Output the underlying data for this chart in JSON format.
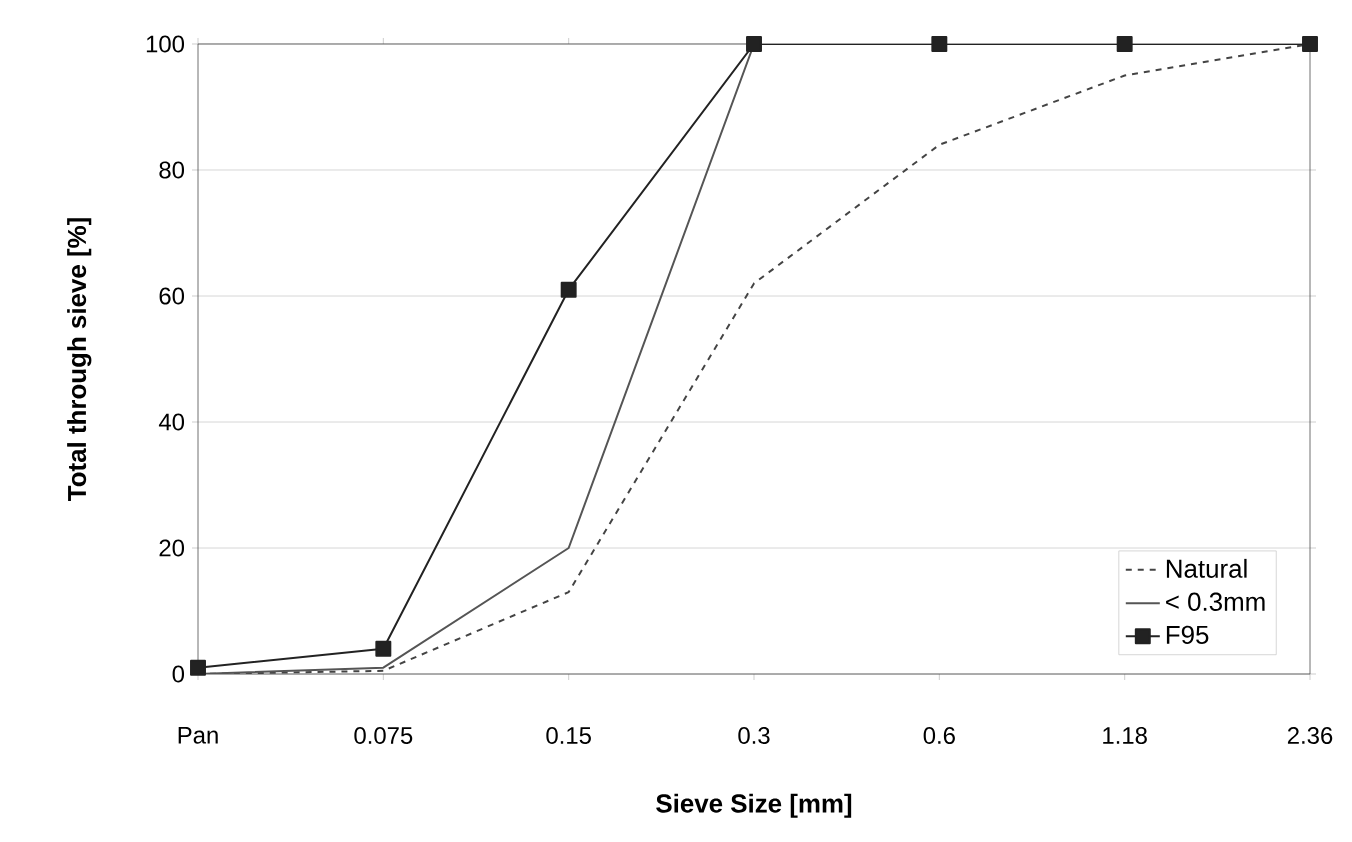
{
  "chart_data": {
    "type": "line",
    "xlabel": "Sieve Size [mm]",
    "ylabel": "Total through sieve [%]",
    "categories": [
      "Pan",
      "0.075",
      "0.15",
      "0.3",
      "0.6",
      "1.18",
      "2.36"
    ],
    "series": [
      {
        "name": "Natural",
        "color": "#444444",
        "line_style": "dashed",
        "marker": "none",
        "values": [
          0,
          0.5,
          13,
          62,
          84,
          95,
          100
        ]
      },
      {
        "name": "< 0.3mm",
        "color": "#555555",
        "line_style": "solid",
        "marker": "none",
        "values": [
          0,
          1,
          20,
          100,
          100,
          100,
          100
        ]
      },
      {
        "name": "F95",
        "color": "#222222",
        "line_style": "solid",
        "marker": "square",
        "values": [
          1,
          4,
          61,
          100,
          100,
          100,
          100
        ]
      }
    ],
    "ylim": [
      0,
      100
    ],
    "yticks": [
      0,
      20,
      40,
      60,
      80,
      100
    ],
    "grid": "y",
    "legend": "bottom right"
  }
}
